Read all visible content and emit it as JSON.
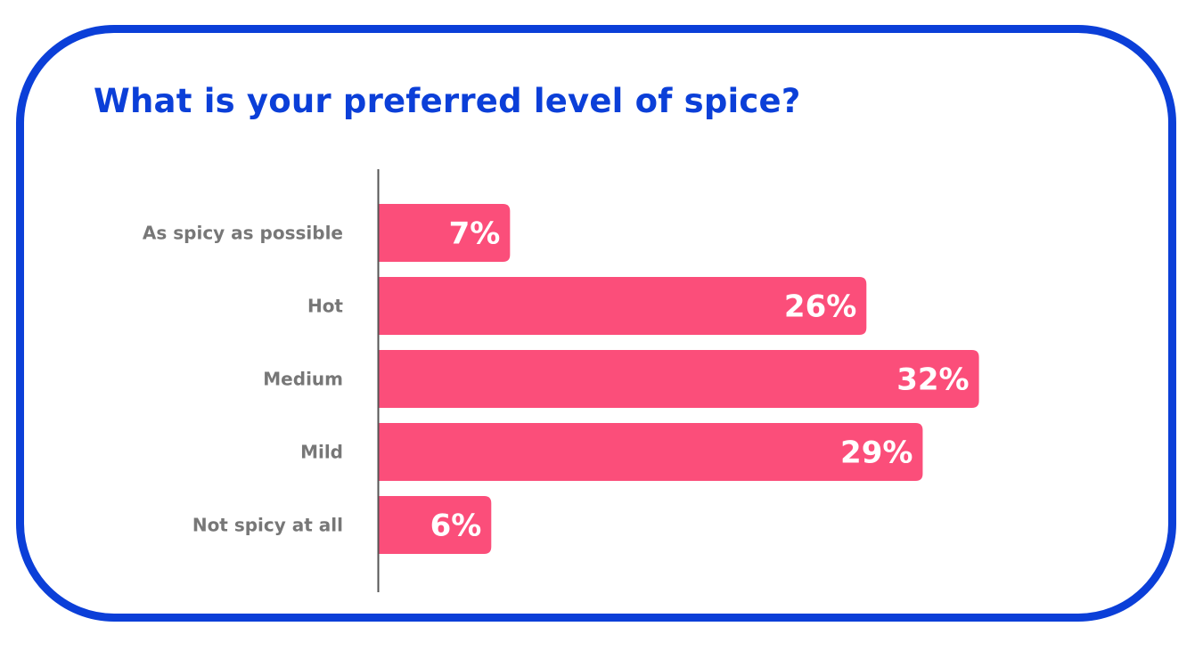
{
  "colors": {
    "frame": "#0b3fd8",
    "title": "#0b3fd8",
    "bar": "#fb4e7a",
    "axis": "#555555",
    "category_text": "#777777",
    "value_text": "#ffffff"
  },
  "chart_data": {
    "type": "bar",
    "orientation": "horizontal",
    "title": "What is your preferred level of spice?",
    "categories": [
      "As spicy as possible",
      "Hot",
      "Medium",
      "Mild",
      "Not spicy at all"
    ],
    "values": [
      7,
      26,
      32,
      29,
      6
    ],
    "value_labels": [
      "7%",
      "26%",
      "32%",
      "29%",
      "6%"
    ],
    "unit": "%",
    "xlim": [
      0,
      32
    ],
    "grid": false,
    "legend": "none"
  }
}
